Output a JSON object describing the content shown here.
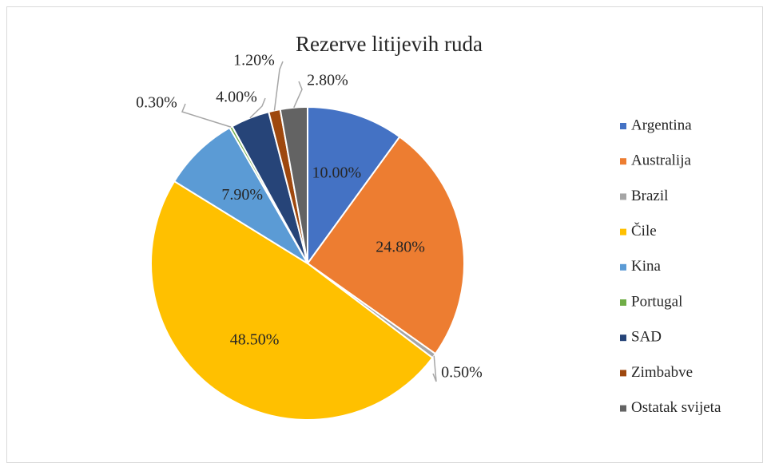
{
  "chart_data": {
    "type": "pie",
    "title": "Rezerve litijevih ruda",
    "categories": [
      "Argentina",
      "Australija",
      "Brazil",
      "Čile",
      "Kina",
      "Portugal",
      "SAD",
      "Zimbabve",
      "Ostatak svijeta"
    ],
    "values": [
      10,
      24.8,
      0.5,
      48.5,
      7.9,
      0.3,
      4.0,
      1.2,
      2.8
    ],
    "value_labels": [
      "10.00%",
      "24.80%",
      "0.50%",
      "48.50%",
      "7.90%",
      "0.30%",
      "4.00%",
      "1.20%",
      "2.80%"
    ],
    "colors": [
      "#4472c4",
      "#ed7d31",
      "#a5a5a5",
      "#ffc000",
      "#5b9bd5",
      "#70ad47",
      "#264478",
      "#9e480e",
      "#636363"
    ],
    "legend": "right"
  }
}
